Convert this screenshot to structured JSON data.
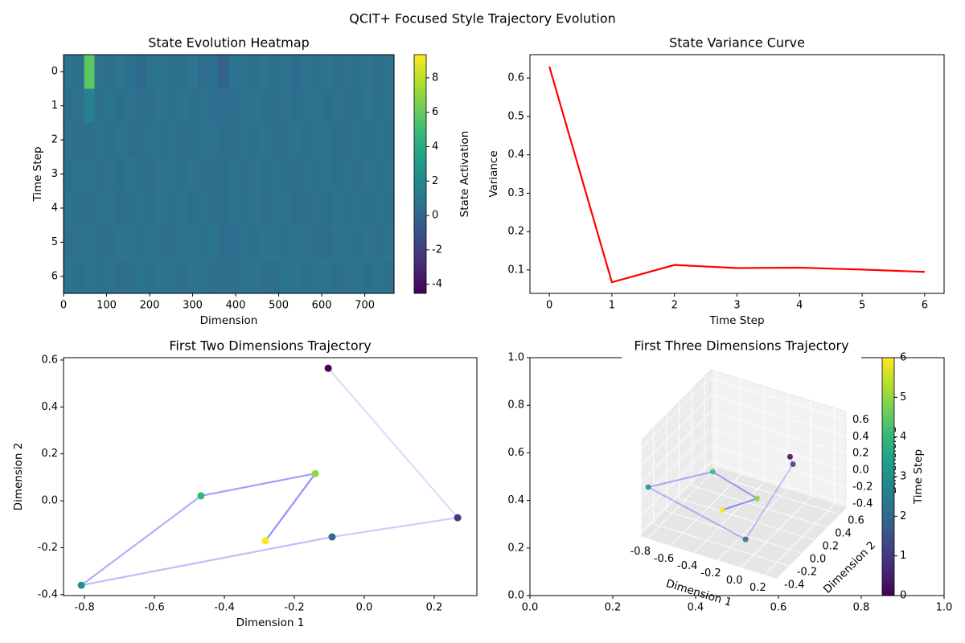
{
  "title": "QCIT+ Focused Style Trajectory Evolution",
  "chart_data": [
    {
      "type": "heatmap",
      "title": "State Evolution Heatmap",
      "xlabel": "Dimension",
      "ylabel": "Time Step",
      "colorbar_label": "State Activation",
      "colormap": "viridis",
      "xlim": [
        0,
        768
      ],
      "ylim": [
        6.5,
        -0.5
      ],
      "xticks": [
        0,
        100,
        200,
        300,
        400,
        500,
        600,
        700
      ],
      "yticks": [
        0,
        1,
        2,
        3,
        4,
        5,
        6
      ],
      "clim": [
        -4.53,
        9.35
      ],
      "cticks": [
        -4,
        -2,
        0,
        2,
        4,
        6,
        8
      ],
      "values": [
        [
          0.8,
          0.6,
          5.8,
          0.7,
          0.5,
          0.9,
          0.6,
          0.3,
          0.7,
          0.8,
          0.5,
          0.6,
          0.9,
          0.4,
          0.6,
          -0.2,
          0.7,
          0.8,
          0.5,
          0.9,
          0.6,
          0.7,
          0.4,
          0.8,
          0.6,
          0.9,
          0.5,
          0.7,
          0.6,
          0.8,
          0.5,
          0.7
        ],
        [
          0.6,
          0.7,
          1.6,
          0.5,
          0.8,
          0.6,
          0.7,
          0.5,
          0.6,
          0.7,
          0.6,
          0.8,
          0.5,
          0.7,
          0.6,
          0.4,
          0.6,
          0.7,
          0.8,
          0.6,
          0.5,
          0.7,
          0.6,
          0.7,
          0.8,
          0.6,
          0.7,
          0.5,
          0.6,
          0.7,
          0.6,
          0.8
        ],
        [
          0.7,
          0.5,
          0.6,
          0.8,
          0.6,
          0.7,
          0.5,
          0.6,
          0.8,
          0.6,
          0.7,
          0.6,
          0.5,
          0.8,
          0.7,
          0.5,
          0.6,
          0.8,
          0.6,
          0.7,
          0.6,
          0.5,
          0.7,
          0.6,
          0.8,
          0.7,
          0.5,
          0.6,
          0.7,
          0.6,
          0.8,
          0.6
        ],
        [
          0.6,
          0.8,
          0.7,
          0.5,
          0.7,
          0.6,
          0.8,
          0.6,
          0.5,
          0.7,
          0.8,
          0.6,
          0.7,
          0.5,
          0.6,
          0.6,
          0.8,
          0.5,
          0.7,
          0.6,
          0.8,
          0.6,
          0.5,
          0.7,
          0.6,
          0.8,
          0.6,
          0.7,
          0.5,
          0.8,
          0.6,
          0.7
        ],
        [
          0.7,
          0.6,
          0.5,
          0.7,
          0.8,
          0.5,
          0.6,
          0.7,
          0.6,
          0.8,
          0.5,
          0.7,
          0.6,
          0.8,
          0.5,
          0.5,
          0.7,
          0.6,
          0.8,
          0.5,
          0.7,
          0.8,
          0.6,
          0.5,
          0.7,
          0.6,
          0.8,
          0.6,
          0.7,
          0.5,
          0.7,
          0.6
        ],
        [
          0.5,
          0.7,
          0.8,
          0.6,
          0.5,
          0.8,
          0.7,
          0.6,
          0.7,
          0.5,
          0.6,
          0.8,
          0.7,
          0.6,
          0.8,
          0.4,
          0.5,
          0.7,
          0.6,
          0.8,
          0.7,
          0.6,
          0.8,
          0.7,
          0.5,
          0.6,
          0.7,
          0.8,
          0.6,
          0.7,
          0.5,
          0.8
        ],
        [
          0.8,
          0.6,
          0.7,
          0.6,
          0.7,
          0.6,
          0.5,
          0.8,
          0.6,
          0.7,
          0.7,
          0.5,
          0.8,
          0.7,
          0.5,
          0.5,
          0.6,
          0.8,
          0.7,
          0.6,
          0.5,
          0.8,
          0.7,
          0.6,
          0.7,
          0.8,
          0.5,
          0.7,
          0.8,
          0.6,
          0.7,
          0.5
        ]
      ]
    },
    {
      "type": "line",
      "title": "State Variance Curve",
      "xlabel": "Time Step",
      "ylabel": "Variance",
      "color": "#ff0000",
      "x": [
        0,
        1,
        2,
        3,
        4,
        5,
        6
      ],
      "values": [
        0.63,
        0.068,
        0.113,
        0.105,
        0.106,
        0.101,
        0.095
      ],
      "xlim": [
        -0.31,
        6.31
      ],
      "ylim": [
        0.039,
        0.661
      ],
      "xticks": [
        0,
        1,
        2,
        3,
        4,
        5,
        6
      ],
      "yticks": [
        0.1,
        0.2,
        0.3,
        0.4,
        0.5,
        0.6
      ]
    },
    {
      "type": "scatter",
      "title": "First Two Dimensions Trajectory",
      "xlabel": "Dimension 1",
      "ylabel": "Dimension 2",
      "colormap": "viridis",
      "line_color": "#0000ff",
      "x": [
        -0.103,
        0.267,
        -0.092,
        -0.809,
        -0.467,
        -0.14,
        -0.283
      ],
      "values": [
        0.565,
        -0.072,
        -0.154,
        -0.36,
        0.021,
        0.116,
        -0.171
      ],
      "c": [
        0,
        1,
        2,
        3,
        4,
        5,
        6
      ],
      "xlim": [
        -0.86,
        0.322
      ],
      "ylim": [
        -0.404,
        0.61
      ],
      "xticks": [
        -0.8,
        -0.6,
        -0.4,
        -0.2,
        {
          "value": 0,
          "label": "0.0"
        },
        0.2
      ],
      "yticks": [
        -0.4,
        -0.2,
        {
          "value": 0,
          "label": "0.0"
        },
        0.2,
        0.4,
        0.6
      ]
    },
    {
      "type": "scatter3d",
      "title": "First Three Dimensions Trajectory",
      "xlabel": "Dimension 1",
      "ylabel": "Dimension 2",
      "zlabel": "Dimension 3",
      "colormap": "viridis",
      "line_color": "#0000ff",
      "colorbar_label": "Time Step",
      "clim": [
        0,
        6
      ],
      "cticks": [
        0,
        1,
        2,
        3,
        4,
        5,
        6
      ],
      "x": [
        -0.103,
        0.267,
        -0.092,
        -0.809,
        -0.467,
        -0.14,
        -0.283
      ],
      "y": [
        0.565,
        -0.072,
        -0.154,
        -0.36,
        0.021,
        0.116,
        -0.171
      ],
      "z": [
        0.09,
        0.65,
        -0.34,
        0.13,
        0.17,
        -0.08,
        -0.06
      ],
      "c": [
        0,
        1,
        2,
        3,
        4,
        5,
        6
      ],
      "xlim": [
        -0.85,
        0.3
      ],
      "ylim": [
        -0.4,
        0.7
      ],
      "zlim": [
        -0.45,
        0.7
      ],
      "xticks": [
        -0.8,
        -0.6,
        -0.4,
        -0.2,
        {
          "value": 0,
          "label": "0.0"
        },
        0.2
      ],
      "yticks": [
        -0.4,
        -0.2,
        {
          "value": 0,
          "label": "0.0"
        },
        0.2,
        0.4,
        0.6
      ],
      "zticks": [
        -0.4,
        -0.2,
        {
          "value": 0,
          "label": "0.0"
        },
        0.2,
        0.4,
        0.6
      ],
      "panel_xlim": [
        0,
        1
      ],
      "panel_ylim": [
        0,
        1
      ],
      "panel_xticks": [
        {
          "value": 0,
          "label": "0.0"
        },
        0.2,
        0.4,
        0.6,
        0.8,
        {
          "value": 1,
          "label": "1.0"
        }
      ],
      "panel_yticks": [
        {
          "value": 0,
          "label": "0.0"
        },
        0.2,
        0.4,
        0.6,
        0.8,
        {
          "value": 1,
          "label": "1.0"
        }
      ]
    }
  ]
}
